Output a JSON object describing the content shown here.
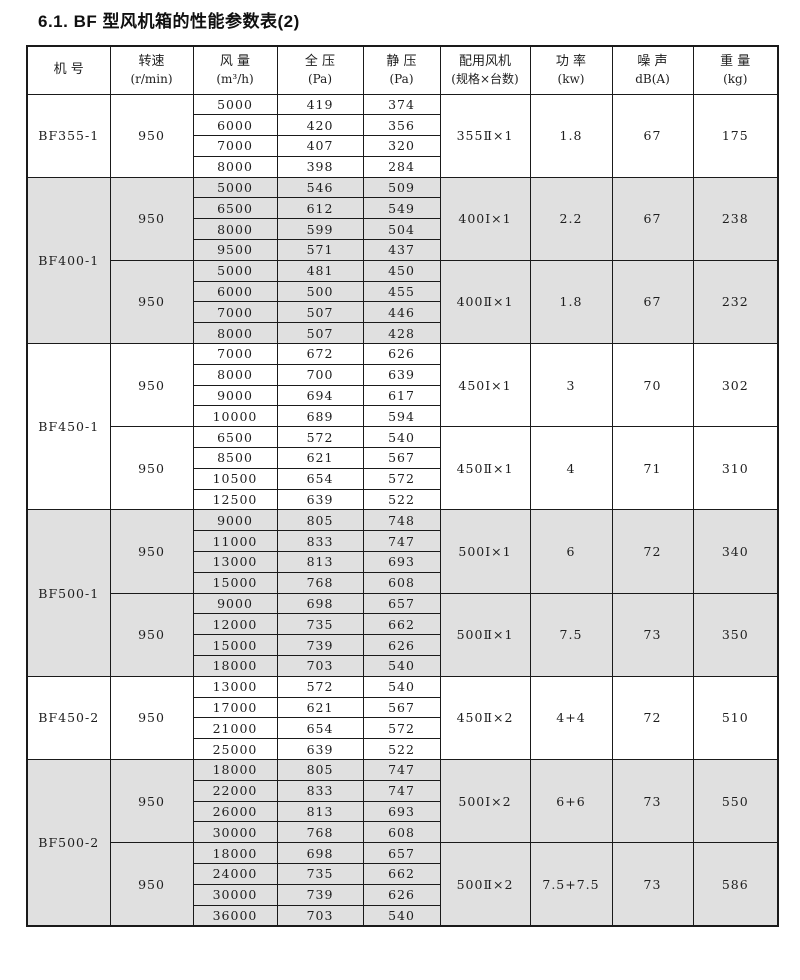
{
  "page": {
    "title": "6.1. BF 型风机箱的性能参数表(2)"
  },
  "colors": {
    "shaded_block_bg": "#e0e0e0",
    "table_border": "#1a1a1a"
  },
  "table": {
    "columns": [
      {
        "id": "model",
        "line1": "机 号",
        "line2": ""
      },
      {
        "id": "speed",
        "line1": "转速",
        "line2": "(r/min)"
      },
      {
        "id": "airflow",
        "line1": "风 量",
        "line2": "(m³/h)"
      },
      {
        "id": "total-pressure",
        "line1": "全 压",
        "line2": "(Pa)"
      },
      {
        "id": "static-pressure",
        "line1": "静 压",
        "line2": "(Pa)"
      },
      {
        "id": "fan-config",
        "line1": "配用风机",
        "line2": "(规格×台数)"
      },
      {
        "id": "power",
        "line1": "功 率",
        "line2": "(kw)"
      },
      {
        "id": "noise",
        "line1": "噪 声",
        "line2": "dB(A)"
      },
      {
        "id": "weight",
        "line1": "重 量",
        "line2": "(kg)"
      }
    ],
    "blocks": [
      {
        "model": "BF355-1",
        "shaded": false,
        "groups": [
          {
            "speed": "950",
            "fan": "355Ⅱ×1",
            "power": "1.8",
            "noise": "67",
            "weight": "175",
            "rows": [
              [
                "5000",
                "419",
                "374"
              ],
              [
                "6000",
                "420",
                "356"
              ],
              [
                "7000",
                "407",
                "320"
              ],
              [
                "8000",
                "398",
                "284"
              ]
            ]
          }
        ]
      },
      {
        "model": "BF400-1",
        "shaded": true,
        "groups": [
          {
            "speed": "950",
            "fan": "400Ⅰ×1",
            "power": "2.2",
            "noise": "67",
            "weight": "238",
            "rows": [
              [
                "5000",
                "546",
                "509"
              ],
              [
                "6500",
                "612",
                "549"
              ],
              [
                "8000",
                "599",
                "504"
              ],
              [
                "9500",
                "571",
                "437"
              ]
            ]
          },
          {
            "speed": "950",
            "fan": "400Ⅱ×1",
            "power": "1.8",
            "noise": "67",
            "weight": "232",
            "rows": [
              [
                "5000",
                "481",
                "450"
              ],
              [
                "6000",
                "500",
                "455"
              ],
              [
                "7000",
                "507",
                "446"
              ],
              [
                "8000",
                "507",
                "428"
              ]
            ]
          }
        ]
      },
      {
        "model": "BF450-1",
        "shaded": false,
        "groups": [
          {
            "speed": "950",
            "fan": "450Ⅰ×1",
            "power": "3",
            "noise": "70",
            "weight": "302",
            "rows": [
              [
                "7000",
                "672",
                "626"
              ],
              [
                "8000",
                "700",
                "639"
              ],
              [
                "9000",
                "694",
                "617"
              ],
              [
                "10000",
                "689",
                "594"
              ]
            ]
          },
          {
            "speed": "950",
            "fan": "450Ⅱ×1",
            "power": "4",
            "noise": "71",
            "weight": "310",
            "rows": [
              [
                "6500",
                "572",
                "540"
              ],
              [
                "8500",
                "621",
                "567"
              ],
              [
                "10500",
                "654",
                "572"
              ],
              [
                "12500",
                "639",
                "522"
              ]
            ]
          }
        ]
      },
      {
        "model": "BF500-1",
        "shaded": true,
        "groups": [
          {
            "speed": "950",
            "fan": "500Ⅰ×1",
            "power": "6",
            "noise": "72",
            "weight": "340",
            "rows": [
              [
                "9000",
                "805",
                "748"
              ],
              [
                "11000",
                "833",
                "747"
              ],
              [
                "13000",
                "813",
                "693"
              ],
              [
                "15000",
                "768",
                "608"
              ]
            ]
          },
          {
            "speed": "950",
            "fan": "500Ⅱ×1",
            "power": "7.5",
            "noise": "73",
            "weight": "350",
            "rows": [
              [
                "9000",
                "698",
                "657"
              ],
              [
                "12000",
                "735",
                "662"
              ],
              [
                "15000",
                "739",
                "626"
              ],
              [
                "18000",
                "703",
                "540"
              ]
            ]
          }
        ]
      },
      {
        "model": "BF450-2",
        "shaded": false,
        "groups": [
          {
            "speed": "950",
            "fan": "450Ⅱ×2",
            "power": "4+4",
            "noise": "72",
            "weight": "510",
            "rows": [
              [
                "13000",
                "572",
                "540"
              ],
              [
                "17000",
                "621",
                "567"
              ],
              [
                "21000",
                "654",
                "572"
              ],
              [
                "25000",
                "639",
                "522"
              ]
            ]
          }
        ]
      },
      {
        "model": "BF500-2",
        "shaded": true,
        "groups": [
          {
            "speed": "950",
            "fan": "500Ⅰ×2",
            "power": "6+6",
            "noise": "73",
            "weight": "550",
            "rows": [
              [
                "18000",
                "805",
                "747"
              ],
              [
                "22000",
                "833",
                "747"
              ],
              [
                "26000",
                "813",
                "693"
              ],
              [
                "30000",
                "768",
                "608"
              ]
            ]
          },
          {
            "speed": "950",
            "fan": "500Ⅱ×2",
            "power": "7.5+7.5",
            "noise": "73",
            "weight": "586",
            "rows": [
              [
                "18000",
                "698",
                "657"
              ],
              [
                "24000",
                "735",
                "662"
              ],
              [
                "30000",
                "739",
                "626"
              ],
              [
                "36000",
                "703",
                "540"
              ]
            ]
          }
        ]
      }
    ]
  }
}
